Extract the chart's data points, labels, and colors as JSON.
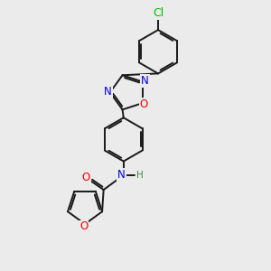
{
  "background_color": "#ebebeb",
  "bond_color": "#1a1a1a",
  "bond_width": 1.4,
  "atom_colors": {
    "N": "#0000ee",
    "O": "#ff0000",
    "Cl": "#00bb00",
    "H": "#448844"
  },
  "font_size": 8.5,
  "font_size_h": 7.5
}
